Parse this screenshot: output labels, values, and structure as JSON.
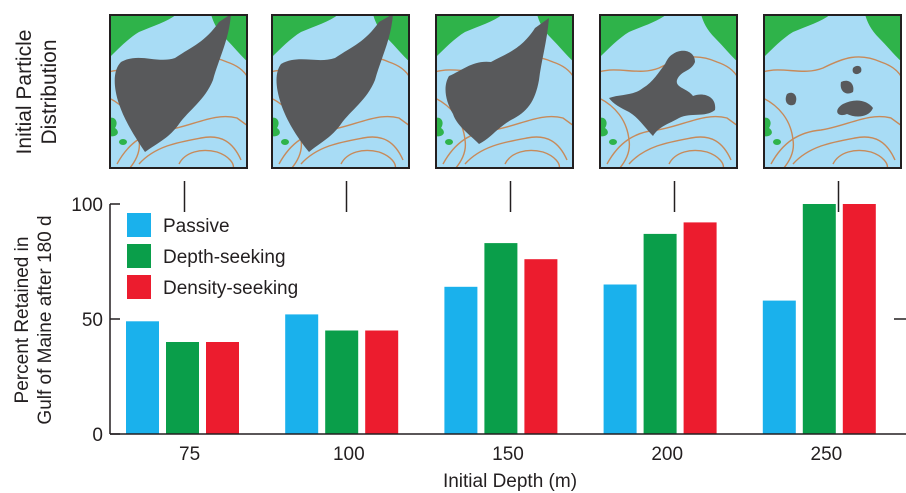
{
  "top_row_label": [
    "Initial Particle",
    "Distribution"
  ],
  "panel_colors": {
    "water": "#a8dcf5",
    "land": "#2fb34a",
    "particles": "#58595b",
    "contour": "#c78a5a",
    "frame": "#231f20"
  },
  "chart_data": {
    "type": "bar",
    "categories": [
      "75",
      "100",
      "150",
      "200",
      "250"
    ],
    "series": [
      {
        "name": "Passive",
        "color": "#1ab1ec",
        "values": [
          49,
          52,
          64,
          65,
          58
        ]
      },
      {
        "name": "Depth-seeking",
        "color": "#0a9e4a",
        "values": [
          40,
          45,
          83,
          87,
          100
        ]
      },
      {
        "name": "Density-seeking",
        "color": "#ec1c2e",
        "values": [
          40,
          45,
          76,
          92,
          100
        ]
      }
    ],
    "xlabel": "Initial Depth (m)",
    "ylabel": [
      "Percent Retained in",
      "Gulf of Maine after 180 d"
    ],
    "ylim": [
      0,
      100
    ],
    "yticks": [
      0,
      50,
      100
    ],
    "grid": false,
    "legend_position": "top-left"
  }
}
